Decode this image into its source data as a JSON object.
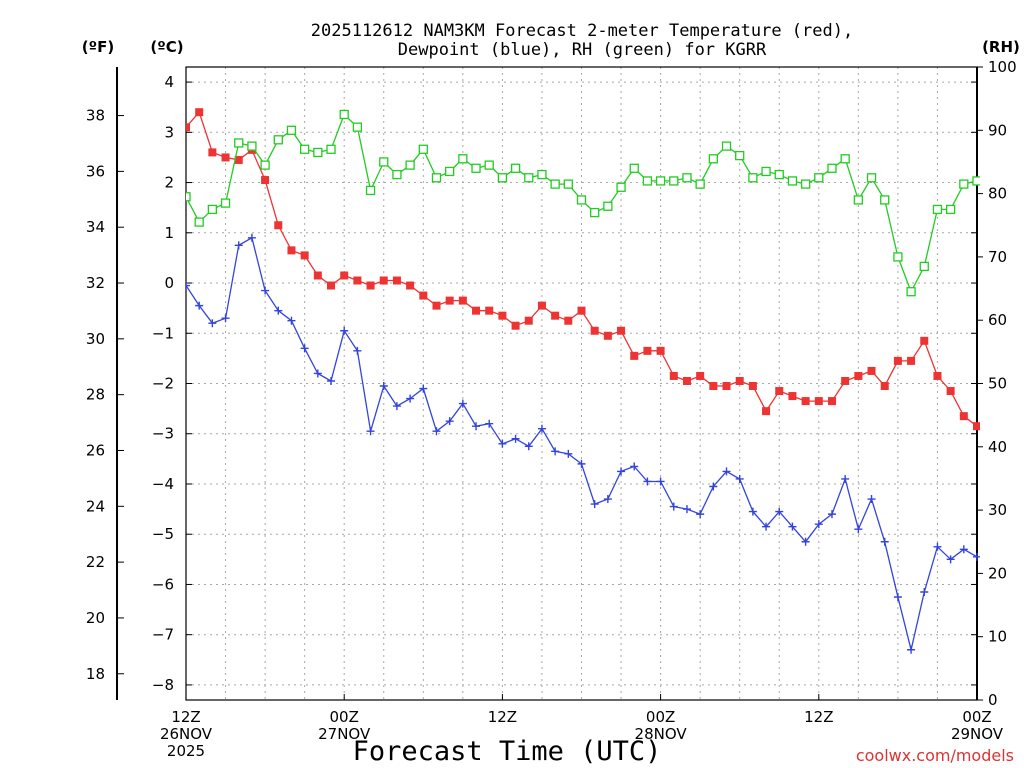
{
  "chart_data": {
    "type": "line",
    "title_line1": "2025112612 NAM3KM Forecast 2-meter Temperature (red),",
    "title_line2": "Dewpoint (blue), RH (green) for KGRR",
    "xlabel": "Forecast Time (UTC)",
    "left_outer_unit": "(ºF)",
    "left_inner_unit": "(ºC)",
    "right_unit": "(RH)",
    "credit": "coolwx.com/models",
    "hours_range": [
      0,
      60
    ],
    "celsius_range": [
      -8.3,
      4.3
    ],
    "rh_range": [
      0,
      100
    ],
    "celsius_ticks": [
      "4",
      "3",
      "2",
      "1",
      "0",
      "-1",
      "-2",
      "-3",
      "-4",
      "-5",
      "-6",
      "-7",
      "-8"
    ],
    "fahrenheit_ticks": [
      "38",
      "36",
      "34",
      "32",
      "30",
      "28",
      "26",
      "24",
      "22",
      "20",
      "18"
    ],
    "rh_ticks": [
      "100",
      "90",
      "80",
      "70",
      "60",
      "50",
      "40",
      "30",
      "20",
      "10",
      "0"
    ],
    "x_ticks": [
      {
        "hour": 0,
        "line1": "12Z",
        "line2": "26NOV",
        "line3": "2025"
      },
      {
        "hour": 12,
        "line1": "00Z",
        "line2": "27NOV",
        "line3": ""
      },
      {
        "hour": 24,
        "line1": "12Z",
        "line2": "",
        "line3": ""
      },
      {
        "hour": 36,
        "line1": "00Z",
        "line2": "28NOV",
        "line3": ""
      },
      {
        "hour": 48,
        "line1": "12Z",
        "line2": "",
        "line3": ""
      },
      {
        "hour": 60,
        "line1": "00Z",
        "line2": "29NOV",
        "line3": ""
      }
    ],
    "series": [
      {
        "name": "Temperature (C)",
        "axis": "celsius",
        "color": "#ee3333",
        "marker": "filled-square",
        "values": [
          3.1,
          3.4,
          2.6,
          2.5,
          2.45,
          2.65,
          2.05,
          1.15,
          0.65,
          0.55,
          0.15,
          -0.05,
          0.15,
          0.05,
          -0.05,
          0.05,
          0.05,
          -0.05,
          -0.25,
          -0.45,
          -0.35,
          -0.35,
          -0.55,
          -0.55,
          -0.65,
          -0.85,
          -0.75,
          -0.45,
          -0.65,
          -0.75,
          -0.55,
          -0.95,
          -1.05,
          -0.95,
          -1.45,
          -1.35,
          -1.35,
          -1.85,
          -1.95,
          -1.85,
          -2.05,
          -2.05,
          -1.95,
          -2.05,
          -2.55,
          -2.15,
          -2.25,
          -2.35,
          -2.35,
          -2.35,
          -1.95,
          -1.85,
          -1.75,
          -2.05,
          -1.55,
          -1.55,
          -1.15,
          -1.85,
          -2.15,
          -2.65,
          -2.85
        ]
      },
      {
        "name": "Dewpoint (C)",
        "axis": "celsius",
        "color": "#3344dd",
        "marker": "plus",
        "values": [
          -0.05,
          -0.45,
          -0.8,
          -0.7,
          0.75,
          0.9,
          -0.15,
          -0.55,
          -0.75,
          -1.3,
          -1.8,
          -1.95,
          -0.95,
          -1.35,
          -2.95,
          -2.05,
          -2.45,
          -2.3,
          -2.1,
          -2.95,
          -2.75,
          -2.4,
          -2.85,
          -2.8,
          -3.2,
          -3.1,
          -3.25,
          -2.9,
          -3.35,
          -3.4,
          -3.6,
          -4.4,
          -4.3,
          -3.75,
          -3.65,
          -3.95,
          -3.95,
          -4.45,
          -4.5,
          -4.6,
          -4.05,
          -3.75,
          -3.9,
          -4.55,
          -4.85,
          -4.55,
          -4.85,
          -5.15,
          -4.8,
          -4.6,
          -3.9,
          -4.9,
          -4.3,
          -5.15,
          -6.25,
          -7.3,
          -6.15,
          -5.25,
          -5.5,
          -5.3,
          -5.45
        ]
      },
      {
        "name": "Relative Humidity (%)",
        "axis": "rh",
        "color": "#22cc22",
        "marker": "open-square",
        "values": [
          79.5,
          75.5,
          77.5,
          78.5,
          88,
          87.5,
          84.5,
          88.5,
          90,
          87,
          86.5,
          87,
          92.5,
          90.5,
          80.5,
          85,
          83,
          84.5,
          87,
          82.5,
          83.5,
          85.5,
          84,
          84.5,
          82.5,
          84,
          82.5,
          83,
          81.5,
          81.5,
          79,
          77,
          78,
          81,
          84,
          82,
          82,
          82,
          82.5,
          81.5,
          85.5,
          87.5,
          86,
          82.5,
          83.5,
          83,
          82,
          81.5,
          82.5,
          84,
          85.5,
          79,
          82.5,
          79,
          70,
          64.5,
          68.5,
          77.5,
          77.5,
          81.5,
          82
        ]
      }
    ]
  }
}
